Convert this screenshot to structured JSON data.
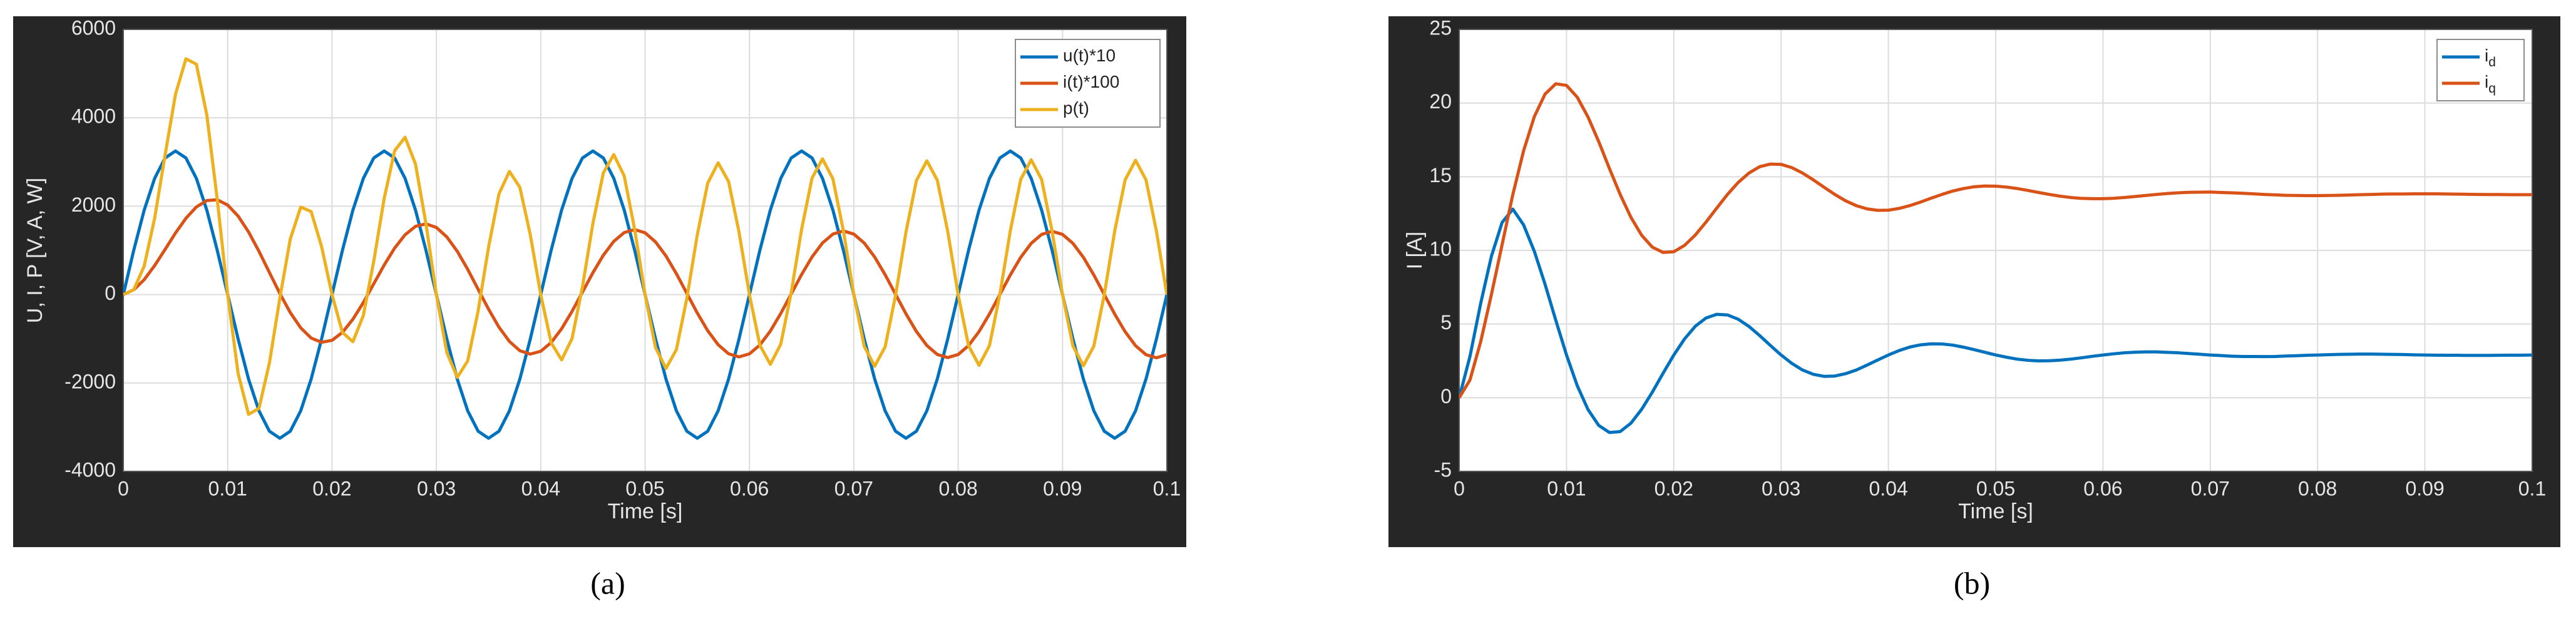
{
  "chart_data": [
    {
      "type": "line",
      "x_label": "Time [s]",
      "y_label": "U, I, P [V, A, W]",
      "caption": "(a)",
      "xlim": [
        0,
        0.1
      ],
      "xticks": [
        0,
        0.01,
        0.02,
        0.03,
        0.04,
        0.05,
        0.06,
        0.07,
        0.08,
        0.09,
        0.1
      ],
      "ylim": [
        -4000,
        6000
      ],
      "yticks": [
        -4000,
        -2000,
        0,
        2000,
        4000,
        6000
      ],
      "grid": true,
      "legend": "upper right",
      "x": [
        0,
        0.001,
        0.002,
        0.003,
        0.004,
        0.005,
        0.006,
        0.007,
        0.008,
        0.009,
        0.01,
        0.011,
        0.012,
        0.013,
        0.014,
        0.015,
        0.016,
        0.017,
        0.018,
        0.019,
        0.02,
        0.021,
        0.022,
        0.023,
        0.024,
        0.025,
        0.026,
        0.027,
        0.028,
        0.029,
        0.03,
        0.031,
        0.032,
        0.033,
        0.034,
        0.035,
        0.036,
        0.037,
        0.038,
        0.039,
        0.04,
        0.041,
        0.042,
        0.043,
        0.044,
        0.045,
        0.046,
        0.047,
        0.048,
        0.049,
        0.05,
        0.051,
        0.052,
        0.053,
        0.054,
        0.055,
        0.056,
        0.057,
        0.058,
        0.059,
        0.06,
        0.061,
        0.062,
        0.063,
        0.064,
        0.065,
        0.066,
        0.067,
        0.068,
        0.069,
        0.07,
        0.071,
        0.072,
        0.073,
        0.074,
        0.075,
        0.076,
        0.077,
        0.078,
        0.079,
        0.08,
        0.081,
        0.082,
        0.083,
        0.084,
        0.085,
        0.086,
        0.087,
        0.088,
        0.089,
        0.09,
        0.091,
        0.092,
        0.093,
        0.094,
        0.095,
        0.096,
        0.097,
        0.098,
        0.099,
        0.1
      ],
      "series": [
        {
          "name": "u(t)*10",
          "color": "#0072bd",
          "values": [
            0,
            1004,
            1911,
            2629,
            3091,
            3250,
            3091,
            2629,
            1911,
            1004,
            0,
            -1004,
            -1911,
            -2629,
            -3091,
            -3250,
            -3091,
            -2629,
            -1911,
            -1004,
            0,
            1004,
            1911,
            2629,
            3091,
            3250,
            3091,
            2629,
            1911,
            1004,
            0,
            -1004,
            -1911,
            -2629,
            -3091,
            -3250,
            -3091,
            -2629,
            -1911,
            -1004,
            0,
            1004,
            1911,
            2629,
            3091,
            3250,
            3091,
            2629,
            1911,
            1004,
            0,
            -1004,
            -1911,
            -2629,
            -3091,
            -3250,
            -3091,
            -2629,
            -1911,
            -1004,
            0,
            1004,
            1911,
            2629,
            3091,
            3250,
            3091,
            2629,
            1911,
            1004,
            0,
            -1004,
            -1911,
            -2629,
            -3091,
            -3250,
            -3091,
            -2629,
            -1911,
            -1004,
            0,
            1004,
            1911,
            2629,
            3091,
            3250,
            3091,
            2629,
            1911,
            1004,
            0,
            -1004,
            -1911,
            -2629,
            -3091,
            -3250,
            -3091,
            -2629,
            -1911,
            -1004,
            0
          ]
        },
        {
          "name": "i(t)*100",
          "color": "#d95319",
          "values": [
            0,
            109,
            338,
            656,
            1021,
            1394,
            1726,
            1983,
            2128,
            2145,
            2026,
            1777,
            1418,
            979,
            500,
            24,
            -407,
            -753,
            -983,
            -1080,
            -1034,
            -854,
            -558,
            -180,
            245,
            670,
            1053,
            1354,
            1544,
            1601,
            1519,
            1305,
            980,
            571,
            120,
            -330,
            -738,
            -1060,
            -1270,
            -1346,
            -1282,
            -1085,
            -773,
            -379,
            58,
            496,
            891,
            1205,
            1404,
            1471,
            1398,
            1192,
            874,
            473,
            28,
            -415,
            -816,
            -1134,
            -1339,
            -1410,
            -1341,
            -1140,
            -825,
            -427,
            14,
            455,
            853,
            1168,
            1370,
            1440,
            1369,
            1166,
            849,
            450,
            7,
            -435,
            -835,
            -1151,
            -1355,
            -1425,
            -1356,
            -1153,
            -837,
            -439,
            3,
            445,
            844,
            1160,
            1362,
            1432,
            1362,
            1159,
            843,
            444,
            2,
            -441,
            -840,
            -1156,
            -1359,
            -1429,
            -1359
          ]
        },
        {
          "name": "p(t)",
          "color": "#edb120",
          "values": [
            0,
            109,
            646,
            1725,
            3156,
            4531,
            5335,
            5213,
            4067,
            2154,
            0,
            -1784,
            -2710,
            -2574,
            -1546,
            -78,
            1258,
            1980,
            1879,
            1084,
            0,
            -857,
            -1066,
            -473,
            757,
            2178,
            3255,
            3560,
            2951,
            1607,
            0,
            -1310,
            -1873,
            -1501,
            -371,
            1073,
            2281,
            2787,
            2427,
            1351,
            0,
            -1089,
            -1477,
            -996,
            179,
            1612,
            2754,
            3168,
            2683,
            1477,
            0,
            -1197,
            -1670,
            -1244,
            -87,
            1349,
            2522,
            2981,
            2559,
            1416,
            0,
            -1145,
            -1577,
            -1123,
            43,
            1479,
            2637,
            3071,
            2618,
            1446,
            0,
            -1171,
            -1622,
            -1183,
            -22,
            1414,
            2581,
            3026,
            2589,
            1431,
            0,
            -1158,
            -1600,
            -1154,
            9,
            1446,
            2609,
            3050,
            2603,
            1438,
            0,
            -1164,
            -1611,
            -1167,
            -6,
            1433,
            2596,
            3039,
            2597,
            1435,
            0
          ]
        }
      ]
    },
    {
      "type": "line",
      "x_label": "Time [s]",
      "y_label": "I [A]",
      "caption": "(b)",
      "xlim": [
        0,
        0.1
      ],
      "xticks": [
        0,
        0.01,
        0.02,
        0.03,
        0.04,
        0.05,
        0.06,
        0.07,
        0.08,
        0.09,
        0.1
      ],
      "ylim": [
        -5,
        25
      ],
      "yticks": [
        -5,
        0,
        5,
        10,
        15,
        20,
        25
      ],
      "grid": true,
      "legend": "upper right",
      "x": [
        0,
        0.001,
        0.002,
        0.003,
        0.004,
        0.005,
        0.006,
        0.007,
        0.008,
        0.009,
        0.01,
        0.011,
        0.012,
        0.013,
        0.014,
        0.015,
        0.016,
        0.017,
        0.018,
        0.019,
        0.02,
        0.021,
        0.022,
        0.023,
        0.024,
        0.025,
        0.026,
        0.027,
        0.028,
        0.029,
        0.03,
        0.031,
        0.032,
        0.033,
        0.034,
        0.035,
        0.036,
        0.037,
        0.038,
        0.039,
        0.04,
        0.041,
        0.042,
        0.043,
        0.044,
        0.045,
        0.046,
        0.047,
        0.048,
        0.049,
        0.05,
        0.051,
        0.052,
        0.053,
        0.054,
        0.055,
        0.056,
        0.057,
        0.058,
        0.059,
        0.06,
        0.061,
        0.062,
        0.063,
        0.064,
        0.065,
        0.066,
        0.067,
        0.068,
        0.069,
        0.07,
        0.071,
        0.072,
        0.073,
        0.074,
        0.075,
        0.076,
        0.077,
        0.078,
        0.079,
        0.08,
        0.081,
        0.082,
        0.083,
        0.084,
        0.085,
        0.086,
        0.087,
        0.088,
        0.089,
        0.09,
        0.091,
        0.092,
        0.093,
        0.094,
        0.095,
        0.096,
        0.097,
        0.098,
        0.099,
        0.1
      ],
      "series": [
        {
          "name": "i",
          "subscript": "d",
          "color": "#0072bd",
          "values": [
            0,
            2.8,
            6.4,
            9.6,
            11.9,
            12.8,
            11.73,
            9.94,
            7.7,
            5.26,
            2.9,
            0.82,
            -0.8,
            -1.88,
            -2.36,
            -2.3,
            -1.73,
            -0.79,
            0.38,
            1.66,
            2.9,
            3.99,
            4.85,
            5.41,
            5.66,
            5.62,
            5.33,
            4.84,
            4.22,
            3.55,
            2.9,
            2.33,
            1.88,
            1.59,
            1.45,
            1.47,
            1.63,
            1.88,
            2.21,
            2.56,
            2.9,
            3.2,
            3.44,
            3.59,
            3.66,
            3.65,
            3.57,
            3.43,
            3.26,
            3.08,
            2.9,
            2.75,
            2.62,
            2.54,
            2.5,
            2.51,
            2.55,
            2.62,
            2.71,
            2.81,
            2.9,
            2.98,
            3.05,
            3.09,
            3.11,
            3.11,
            3.08,
            3.05,
            3.0,
            2.95,
            2.9,
            2.86,
            2.82,
            2.8,
            2.8,
            2.79,
            2.8,
            2.83,
            2.85,
            2.88,
            2.9,
            2.92,
            2.94,
            2.95,
            2.96,
            2.96,
            2.95,
            2.94,
            2.93,
            2.91,
            2.9,
            2.89,
            2.88,
            2.88,
            2.87,
            2.87,
            2.87,
            2.88,
            2.89,
            2.89,
            2.9
          ]
        },
        {
          "name": "i",
          "subscript": "q",
          "color": "#d95319",
          "values": [
            0,
            1.2,
            3.8,
            7.0,
            10.4,
            13.8,
            16.76,
            19.08,
            20.61,
            21.31,
            21.2,
            20.4,
            19.06,
            17.39,
            15.56,
            13.8,
            12.25,
            11.03,
            10.22,
            9.86,
            9.91,
            10.34,
            11.04,
            11.92,
            12.87,
            13.8,
            14.61,
            15.25,
            15.68,
            15.86,
            15.84,
            15.62,
            15.25,
            14.79,
            14.29,
            13.8,
            13.37,
            13.04,
            12.82,
            12.72,
            12.73,
            12.85,
            13.04,
            13.28,
            13.55,
            13.8,
            14.03,
            14.2,
            14.32,
            14.37,
            14.36,
            14.3,
            14.2,
            14.07,
            13.93,
            13.8,
            13.68,
            13.59,
            13.53,
            13.51,
            13.51,
            13.54,
            13.59,
            13.66,
            13.73,
            13.8,
            13.86,
            13.91,
            13.94,
            13.95,
            13.96,
            13.93,
            13.91,
            13.88,
            13.84,
            13.8,
            13.77,
            13.74,
            13.73,
            13.72,
            13.72,
            13.73,
            13.74,
            13.76,
            13.78,
            13.8,
            13.82,
            13.83,
            13.83,
            13.84,
            13.84,
            13.84,
            13.83,
            13.82,
            13.81,
            13.8,
            13.79,
            13.79,
            13.78,
            13.78,
            13.78
          ]
        }
      ]
    }
  ]
}
